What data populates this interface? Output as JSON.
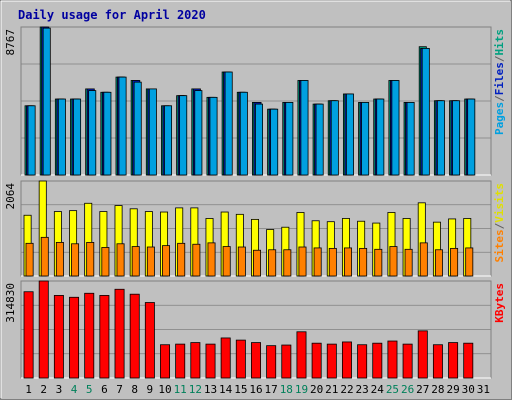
{
  "chart_data": {
    "type": "bar",
    "title": "Daily usage for April 2020",
    "categories": [
      "1",
      "2",
      "3",
      "4",
      "5",
      "6",
      "7",
      "8",
      "9",
      "10",
      "11",
      "12",
      "13",
      "14",
      "15",
      "16",
      "17",
      "18",
      "19",
      "20",
      "21",
      "22",
      "23",
      "24",
      "25",
      "26",
      "27",
      "28",
      "29",
      "30",
      "31"
    ],
    "weekend_days": [
      "4",
      "5",
      "11",
      "12",
      "18",
      "19",
      "25",
      "26"
    ],
    "panels": [
      {
        "id": "hits-pages-files",
        "y_max_label": "8767",
        "y_max": 8767,
        "legend": [
          "Pages",
          "/",
          "Files",
          "/",
          "Hits"
        ],
        "legend_colors": [
          "#00A0E0",
          "#606060",
          "#0020C0",
          "#606060",
          "#00A080"
        ],
        "series": [
          {
            "name": "Hits",
            "color": "#00A080",
            "values": [
              4100,
              8767,
              4500,
              4500,
              5100,
              4900,
              5800,
              5600,
              5100,
              4100,
              4700,
              5100,
              4600,
              6100,
              4900,
              4300,
              3900,
              4300,
              5600,
              4200,
              4400,
              4800,
              4300,
              4500,
              5600,
              4300,
              7600,
              4400,
              4400,
              4500,
              0
            ]
          },
          {
            "name": "Files",
            "color": "#0020C0",
            "values": [
              4100,
              8767,
              4500,
              4500,
              5100,
              4900,
              5800,
              5600,
              5100,
              4100,
              4700,
              5100,
              4600,
              6100,
              4900,
              4300,
              3900,
              4300,
              5600,
              4200,
              4400,
              4800,
              4300,
              4500,
              5600,
              4300,
              7500,
              4400,
              4400,
              4500,
              0
            ]
          },
          {
            "name": "Pages",
            "color": "#00A0E0",
            "values": [
              4100,
              8700,
              4500,
              4500,
              5000,
              4900,
              5800,
              5500,
              5100,
              4100,
              4700,
              5000,
              4600,
              6100,
              4900,
              4200,
              3900,
              4300,
              5600,
              4200,
              4400,
              4800,
              4300,
              4500,
              5600,
              4300,
              7500,
              4400,
              4400,
              4500,
              0
            ]
          }
        ]
      },
      {
        "id": "visits-sites",
        "y_max_label": "2064",
        "y_max": 2064,
        "legend": [
          "Sites",
          "/",
          "Visits"
        ],
        "legend_colors": [
          "#FF8000",
          "#606060",
          "#E0E000"
        ],
        "series": [
          {
            "name": "Visits",
            "color": "#FFFF00",
            "values": [
              1320,
              2064,
              1400,
              1420,
              1580,
              1400,
              1530,
              1460,
              1400,
              1390,
              1480,
              1480,
              1250,
              1390,
              1340,
              1230,
              1010,
              1060,
              1380,
              1200,
              1180,
              1250,
              1190,
              1150,
              1380,
              1250,
              1590,
              1170,
              1240,
              1250,
              0
            ]
          },
          {
            "name": "Sites",
            "color": "#FF8000",
            "values": [
              710,
              840,
              730,
              700,
              730,
              620,
              700,
              640,
              630,
              660,
              710,
              690,
              720,
              640,
              630,
              560,
              570,
              570,
              630,
              610,
              600,
              610,
              600,
              580,
              640,
              580,
              720,
              570,
              600,
              610,
              0
            ]
          }
        ]
      },
      {
        "id": "kbytes",
        "y_max_label": "314830",
        "y_max": 314830,
        "legend": [
          "KBytes"
        ],
        "legend_colors": [
          "#FF0000"
        ],
        "series": [
          {
            "name": "KBytes",
            "color": "#FF0000",
            "values": [
              280000,
              314830,
              268000,
              262000,
              275000,
              268000,
              288000,
              272000,
              245000,
              108000,
              110000,
              115000,
              110000,
              130000,
              123000,
              115000,
              105000,
              107000,
              150000,
              113000,
              110000,
              117000,
              108000,
              113000,
              120000,
              110000,
              153000,
              108000,
              115000,
              113000,
              0
            ]
          }
        ]
      }
    ]
  }
}
